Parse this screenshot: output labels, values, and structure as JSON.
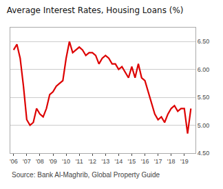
{
  "chart_data": {
    "type": "line",
    "title": "Average Interest Rates, Housing Loans (%)",
    "annotations": [
      "Source: Bank Al-Maghrib, Global Property Guide"
    ],
    "color": "#dd0000",
    "grid": true,
    "x": [
      2006.0,
      2006.25,
      2006.5,
      2006.75,
      2007.0,
      2007.25,
      2007.5,
      2007.75,
      2008.0,
      2008.25,
      2008.5,
      2008.75,
      2009.0,
      2009.25,
      2009.5,
      2009.75,
      2010.0,
      2010.25,
      2010.5,
      2010.75,
      2011.0,
      2011.25,
      2011.5,
      2011.75,
      2012.0,
      2012.25,
      2012.5,
      2012.75,
      2013.0,
      2013.25,
      2013.5,
      2013.75,
      2014.0,
      2014.25,
      2014.5,
      2014.75,
      2015.0,
      2015.25,
      2015.5,
      2015.75,
      2016.0,
      2016.25,
      2016.5,
      2016.75,
      2017.0,
      2017.25,
      2017.5,
      2017.75,
      2018.0,
      2018.25,
      2018.5,
      2018.75,
      2019.0,
      2019.25,
      2019.5
    ],
    "values": [
      6.35,
      6.45,
      6.2,
      5.7,
      5.1,
      5.0,
      5.05,
      5.3,
      5.2,
      5.15,
      5.3,
      5.55,
      5.6,
      5.7,
      5.75,
      5.8,
      6.2,
      6.5,
      6.3,
      6.35,
      6.4,
      6.35,
      6.25,
      6.3,
      6.3,
      6.25,
      6.1,
      6.2,
      6.25,
      6.2,
      6.1,
      6.1,
      6.0,
      6.05,
      5.95,
      5.85,
      6.05,
      5.85,
      6.1,
      5.85,
      5.8,
      5.6,
      5.4,
      5.2,
      5.1,
      5.15,
      5.05,
      5.2,
      5.3,
      5.35,
      5.25,
      5.3,
      5.3,
      4.85,
      5.3
    ],
    "xlim": [
      2005.75,
      2019.85
    ],
    "xticks": [
      {
        "value": 2006,
        "label": "'06"
      },
      {
        "value": 2007,
        "label": "'07"
      },
      {
        "value": 2008,
        "label": "'08"
      },
      {
        "value": 2009,
        "label": "'09"
      },
      {
        "value": 2010,
        "label": "'10"
      },
      {
        "value": 2011,
        "label": "'11"
      },
      {
        "value": 2012,
        "label": "'12"
      },
      {
        "value": 2013,
        "label": "'13"
      },
      {
        "value": 2014,
        "label": "'14"
      },
      {
        "value": 2015,
        "label": "'15"
      },
      {
        "value": 2016,
        "label": "'16"
      },
      {
        "value": 2017,
        "label": "'17"
      },
      {
        "value": 2018,
        "label": "'18"
      },
      {
        "value": 2019,
        "label": "'19"
      }
    ],
    "ylim": [
      4.5,
      6.75
    ],
    "yticks": [
      {
        "value": 4.5,
        "label": "4.50"
      },
      {
        "value": 5.0,
        "label": "5.00"
      },
      {
        "value": 5.5,
        "label": "5.50"
      },
      {
        "value": 6.0,
        "label": "6.00"
      },
      {
        "value": 6.5,
        "label": "6.50"
      }
    ]
  }
}
